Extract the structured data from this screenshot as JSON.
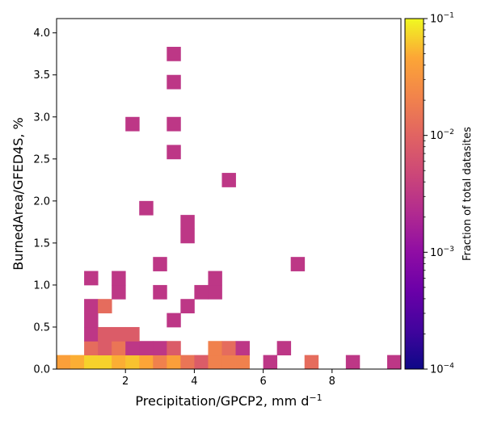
{
  "chart_data": {
    "type": "heatmap",
    "title": "",
    "xlabel": "Precipitation/GPCP2,  mm d",
    "xlabel_sup": "−1",
    "ylabel": "BurnedArea/GFED4S,  %",
    "xlim": [
      0,
      10
    ],
    "ylim": [
      0,
      4.17
    ],
    "x_bin_width": 0.4,
    "y_bin_width": 0.167,
    "x_ticks": [
      2,
      4,
      6,
      8
    ],
    "x_tick_labels": [
      "2",
      "4",
      "6",
      "8"
    ],
    "y_ticks": [
      0.0,
      0.5,
      1.0,
      1.5,
      2.0,
      2.5,
      3.0,
      3.5,
      4.0
    ],
    "y_tick_labels": [
      "0.0",
      "0.5",
      "1.0",
      "1.5",
      "2.0",
      "2.5",
      "3.0",
      "3.5",
      "4.0"
    ],
    "colorbar": {
      "label": "Fraction of total datasites",
      "scale": "log",
      "min": 0.0001,
      "max": 0.1,
      "colormap": "plasma",
      "ticks": [
        {
          "value": 0.1,
          "base": "10",
          "exp": "−1"
        },
        {
          "value": 0.01,
          "base": "10",
          "exp": "−2"
        },
        {
          "value": 0.001,
          "base": "10",
          "exp": "−3"
        },
        {
          "value": 0.0001,
          "base": "10",
          "exp": "−4"
        }
      ]
    },
    "cells": [
      {
        "x": 0.0,
        "y": 0.0,
        "v": 0.04
      },
      {
        "x": 0.4,
        "y": 0.0,
        "v": 0.05
      },
      {
        "x": 0.8,
        "y": 0.0,
        "v": 0.07
      },
      {
        "x": 1.2,
        "y": 0.0,
        "v": 0.07
      },
      {
        "x": 1.6,
        "y": 0.0,
        "v": 0.05
      },
      {
        "x": 2.0,
        "y": 0.0,
        "v": 0.06
      },
      {
        "x": 2.4,
        "y": 0.0,
        "v": 0.045
      },
      {
        "x": 2.8,
        "y": 0.0,
        "v": 0.02
      },
      {
        "x": 3.2,
        "y": 0.0,
        "v": 0.04
      },
      {
        "x": 3.6,
        "y": 0.0,
        "v": 0.015
      },
      {
        "x": 4.0,
        "y": 0.0,
        "v": 0.008
      },
      {
        "x": 4.4,
        "y": 0.0,
        "v": 0.02
      },
      {
        "x": 4.8,
        "y": 0.0,
        "v": 0.02
      },
      {
        "x": 5.2,
        "y": 0.0,
        "v": 0.02
      },
      {
        "x": 6.0,
        "y": 0.0,
        "v": 0.003
      },
      {
        "x": 7.2,
        "y": 0.0,
        "v": 0.012
      },
      {
        "x": 8.4,
        "y": 0.0,
        "v": 0.003
      },
      {
        "x": 9.6,
        "y": 0.0,
        "v": 0.003
      },
      {
        "x": 0.8,
        "y": 0.167,
        "v": 0.012
      },
      {
        "x": 1.2,
        "y": 0.167,
        "v": 0.008
      },
      {
        "x": 1.6,
        "y": 0.167,
        "v": 0.015
      },
      {
        "x": 2.0,
        "y": 0.167,
        "v": 0.003
      },
      {
        "x": 2.4,
        "y": 0.167,
        "v": 0.003
      },
      {
        "x": 2.8,
        "y": 0.167,
        "v": 0.003
      },
      {
        "x": 3.2,
        "y": 0.167,
        "v": 0.008
      },
      {
        "x": 4.4,
        "y": 0.167,
        "v": 0.02
      },
      {
        "x": 4.8,
        "y": 0.167,
        "v": 0.012
      },
      {
        "x": 5.2,
        "y": 0.167,
        "v": 0.003
      },
      {
        "x": 6.4,
        "y": 0.167,
        "v": 0.003
      },
      {
        "x": 0.8,
        "y": 0.333,
        "v": 0.003
      },
      {
        "x": 1.2,
        "y": 0.333,
        "v": 0.008
      },
      {
        "x": 1.6,
        "y": 0.333,
        "v": 0.008
      },
      {
        "x": 2.0,
        "y": 0.333,
        "v": 0.008
      },
      {
        "x": 0.8,
        "y": 0.5,
        "v": 0.003
      },
      {
        "x": 3.2,
        "y": 0.5,
        "v": 0.003
      },
      {
        "x": 0.8,
        "y": 0.667,
        "v": 0.003
      },
      {
        "x": 1.2,
        "y": 0.667,
        "v": 0.012
      },
      {
        "x": 3.6,
        "y": 0.667,
        "v": 0.003
      },
      {
        "x": 1.6,
        "y": 0.833,
        "v": 0.003
      },
      {
        "x": 2.8,
        "y": 0.833,
        "v": 0.003
      },
      {
        "x": 4.0,
        "y": 0.833,
        "v": 0.003
      },
      {
        "x": 4.4,
        "y": 0.833,
        "v": 0.003
      },
      {
        "x": 0.8,
        "y": 1.0,
        "v": 0.003
      },
      {
        "x": 1.6,
        "y": 1.0,
        "v": 0.003
      },
      {
        "x": 4.4,
        "y": 1.0,
        "v": 0.003
      },
      {
        "x": 2.8,
        "y": 1.167,
        "v": 0.003
      },
      {
        "x": 6.8,
        "y": 1.167,
        "v": 0.003
      },
      {
        "x": 3.6,
        "y": 1.5,
        "v": 0.003
      },
      {
        "x": 3.6,
        "y": 1.667,
        "v": 0.003
      },
      {
        "x": 2.4,
        "y": 1.833,
        "v": 0.003
      },
      {
        "x": 4.8,
        "y": 2.167,
        "v": 0.003
      },
      {
        "x": 3.2,
        "y": 2.5,
        "v": 0.003
      },
      {
        "x": 2.0,
        "y": 2.833,
        "v": 0.003
      },
      {
        "x": 3.2,
        "y": 2.833,
        "v": 0.003
      },
      {
        "x": 3.2,
        "y": 3.333,
        "v": 0.003
      },
      {
        "x": 3.2,
        "y": 3.667,
        "v": 0.003
      }
    ]
  }
}
